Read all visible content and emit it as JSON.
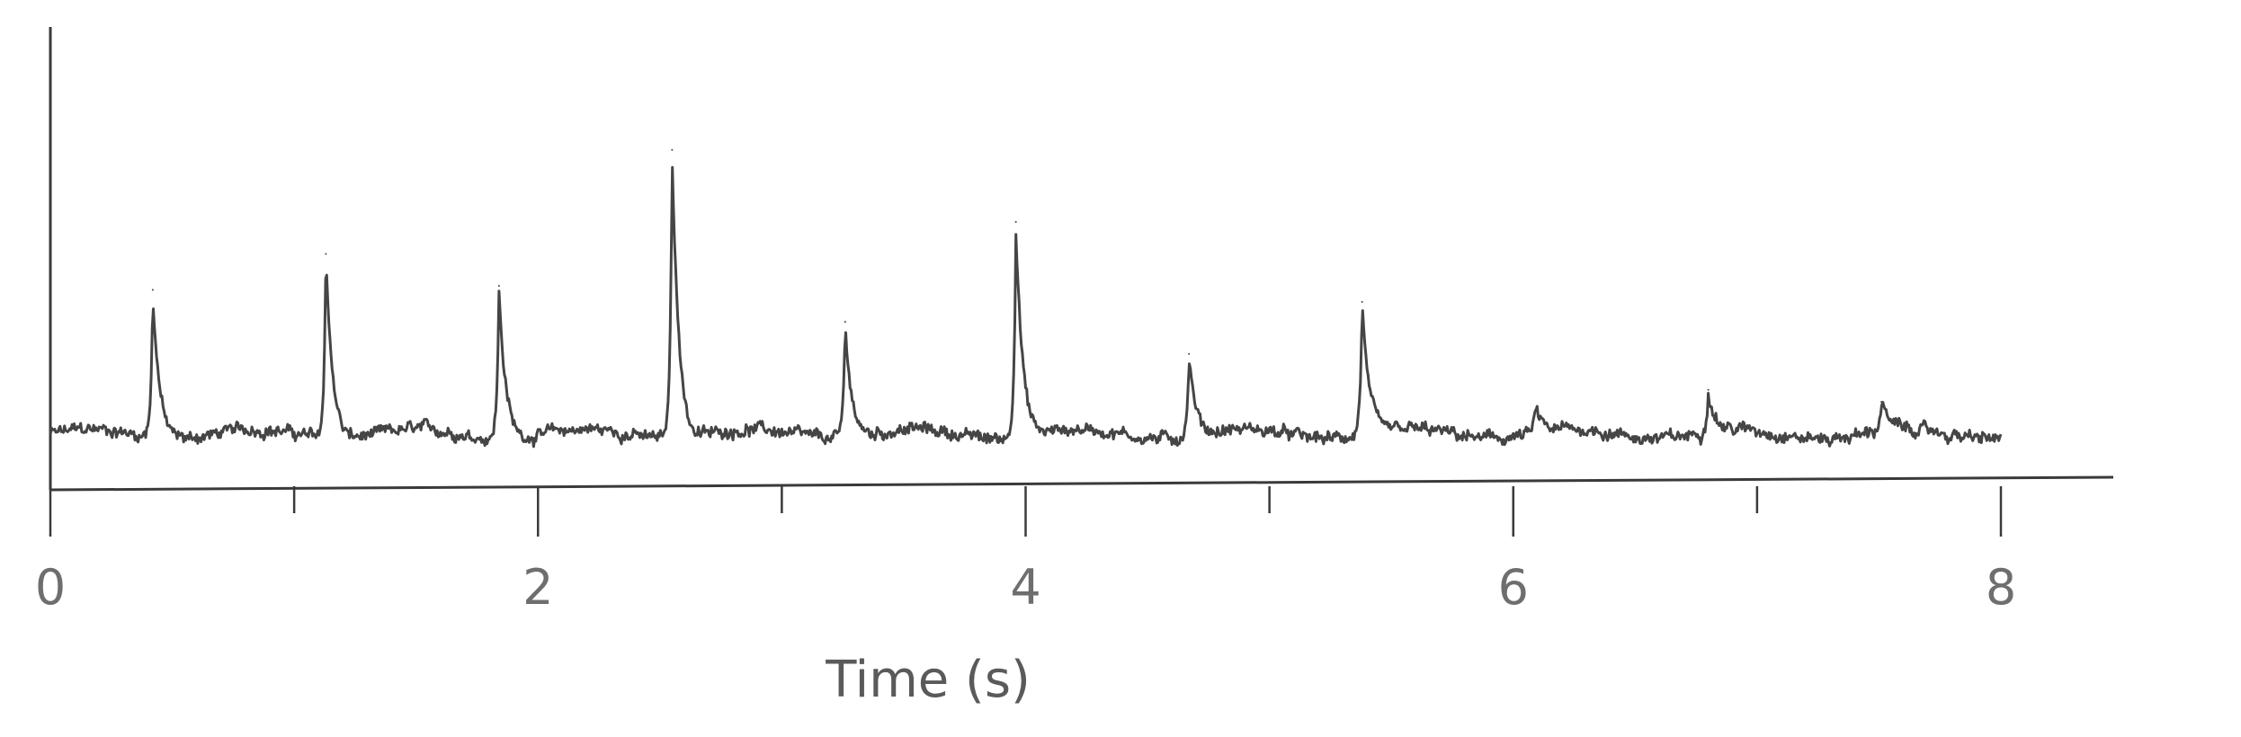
{
  "chart_data": {
    "type": "line",
    "title": "",
    "xlabel": "Time (s)",
    "ylabel": "",
    "xlim": [
      0,
      8.45
    ],
    "ylim": [
      0,
      1
    ],
    "grid": false,
    "x_major_ticks": [
      0,
      2,
      4,
      6,
      8
    ],
    "x_minor_ticks": [
      1,
      3,
      5,
      7
    ],
    "tick_labels": [
      "0",
      "2",
      "4",
      "6",
      "8"
    ],
    "series": [
      {
        "baseline": 0.14,
        "x_start": 0.0,
        "x_end": 8.0,
        "peaks": [
          {
            "x": 0.42,
            "y": 0.5
          },
          {
            "x": 1.13,
            "y": 0.59
          },
          {
            "x": 1.84,
            "y": 0.51
          },
          {
            "x": 2.55,
            "y": 0.85
          },
          {
            "x": 3.26,
            "y": 0.42
          },
          {
            "x": 3.96,
            "y": 0.67
          },
          {
            "x": 4.67,
            "y": 0.34
          },
          {
            "x": 5.38,
            "y": 0.47
          },
          {
            "x": 6.09,
            "y": 0.2
          },
          {
            "x": 6.8,
            "y": 0.25
          },
          {
            "x": 7.51,
            "y": 0.22
          }
        ]
      }
    ]
  },
  "colors": {
    "axis": "#3a3a3a",
    "trace": "#454545",
    "label": "#6e6e6e"
  }
}
